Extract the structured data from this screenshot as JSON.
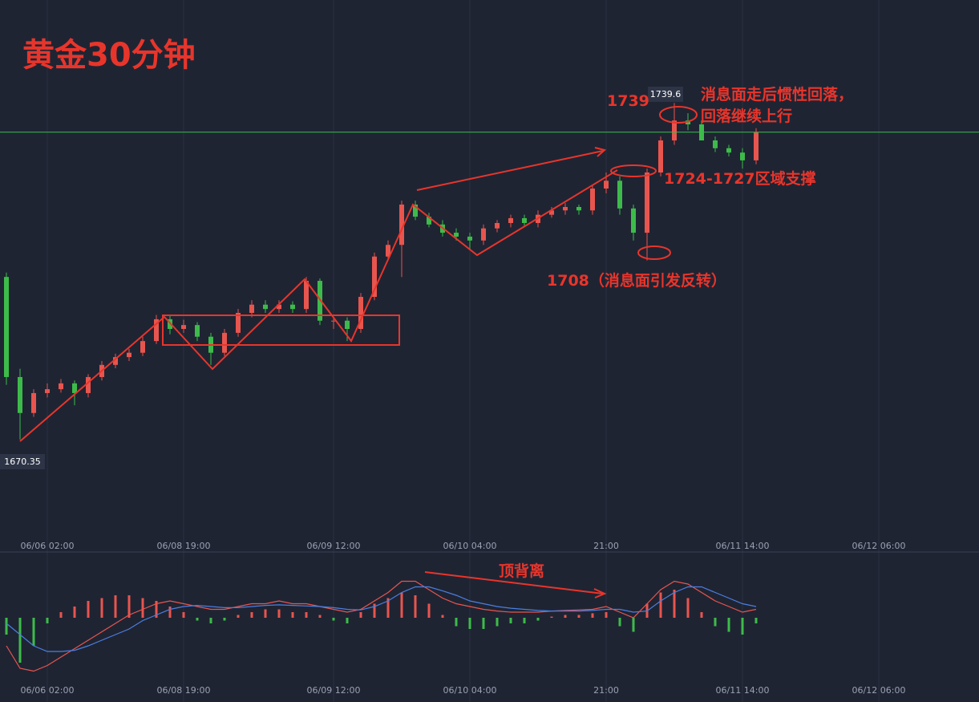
{
  "chart_data": {
    "type": "candlestick",
    "title": "黄金30分钟",
    "categories": [
      null,
      null,
      null,
      "06/06 02:00",
      null,
      null,
      null,
      null,
      null,
      null,
      null,
      null,
      null,
      "06/08 19:00",
      null,
      null,
      null,
      null,
      null,
      null,
      null,
      null,
      null,
      null,
      "06/09 12:00",
      null,
      null,
      null,
      null,
      null,
      null,
      null,
      null,
      null,
      "06/10 04:00",
      null,
      null,
      null,
      null,
      null,
      null,
      null,
      null,
      null,
      "21:00",
      null,
      null,
      null,
      null,
      null,
      null,
      null,
      null,
      null,
      "06/11 14:00",
      null,
      null,
      null,
      null,
      null,
      null,
      null,
      null,
      null,
      "06/12 06:00"
    ],
    "open": [
      1703.8,
      1683.2,
      1675.8,
      1679.9,
      1680.7,
      1681.9,
      1679.9,
      1683.2,
      1685.7,
      1687.3,
      1688.2,
      1690.6,
      1695.1,
      1693.1,
      1693.9,
      1691.5,
      1688.2,
      1692.3,
      1696.4,
      1698.1,
      1697.2,
      1698.1,
      1697.2,
      1703.0,
      1694.8,
      1694.8,
      1693.1,
      1699.7,
      1708.0,
      1710.4,
      1718.7,
      1716.2,
      1714.6,
      1712.9,
      1712.1,
      1711.3,
      1713.8,
      1714.9,
      1715.9,
      1714.9,
      1716.6,
      1717.5,
      1718.2,
      1717.5,
      1722.0,
      1723.6,
      1717.9,
      1712.9,
      1725.3,
      1731.9,
      1736.0,
      1735.2,
      1731.9,
      1730.3,
      1729.4,
      1727.8,
      null,
      null,
      null,
      null,
      null,
      null,
      null,
      null,
      null
    ],
    "high": [
      1704.7,
      1684.9,
      1680.7,
      1681.9,
      1682.8,
      1682.5,
      1683.8,
      1686.5,
      1688.0,
      1689.0,
      1691.5,
      1696.0,
      1696.0,
      1695.0,
      1694.5,
      1692.3,
      1693.1,
      1697.2,
      1699.0,
      1699.0,
      1699.0,
      1698.8,
      1703.8,
      1703.5,
      1695.5,
      1695.5,
      1700.5,
      1708.8,
      1711.3,
      1719.5,
      1719.5,
      1717.0,
      1715.5,
      1713.8,
      1712.9,
      1714.6,
      1715.5,
      1716.6,
      1716.6,
      1717.5,
      1718.2,
      1719.0,
      1718.7,
      1722.8,
      1725.3,
      1724.5,
      1718.7,
      1726.1,
      1732.7,
      1739.6,
      1737.5,
      1736.0,
      1732.7,
      1731.0,
      1730.3,
      1734.4,
      null,
      null,
      null,
      null,
      null,
      null,
      null,
      null,
      null
    ],
    "low": [
      1681.6,
      1670.35,
      1675.0,
      1679.0,
      1680.0,
      1677.4,
      1679.0,
      1682.5,
      1685.0,
      1686.5,
      1687.5,
      1690.0,
      1692.0,
      1692.3,
      1690.6,
      1685.7,
      1687.5,
      1691.5,
      1695.5,
      1696.4,
      1696.4,
      1696.4,
      1696.4,
      1693.9,
      1693.1,
      1690.6,
      1692.3,
      1699.0,
      1707.2,
      1703.8,
      1715.5,
      1714.0,
      1712.1,
      1711.3,
      1709.3,
      1710.4,
      1713.0,
      1714.0,
      1714.0,
      1714.0,
      1716.0,
      1716.6,
      1716.6,
      1716.6,
      1721.0,
      1716.6,
      1711.3,
      1707.2,
      1724.5,
      1731.0,
      1734.0,
      1733.0,
      1729.5,
      1728.6,
      1726.1,
      1727.0,
      null,
      null,
      null,
      null,
      null,
      null,
      null,
      null,
      null
    ],
    "close": [
      1683.2,
      1675.8,
      1679.9,
      1680.7,
      1681.9,
      1679.9,
      1683.2,
      1685.7,
      1687.3,
      1688.2,
      1690.6,
      1695.1,
      1693.1,
      1693.9,
      1691.5,
      1688.2,
      1692.3,
      1696.4,
      1698.1,
      1697.2,
      1698.1,
      1697.2,
      1703.0,
      1694.8,
      1694.8,
      1693.1,
      1699.7,
      1708.0,
      1710.4,
      1718.7,
      1716.2,
      1714.6,
      1712.9,
      1712.1,
      1711.3,
      1713.8,
      1714.9,
      1715.9,
      1714.9,
      1716.6,
      1717.5,
      1718.2,
      1717.5,
      1722.0,
      1723.6,
      1717.9,
      1712.9,
      1725.3,
      1731.9,
      1736.0,
      1735.2,
      1731.9,
      1730.3,
      1729.4,
      1727.8,
      1733.6,
      null,
      null,
      null,
      null,
      null,
      null,
      null,
      null,
      null
    ],
    "up_color": "#e8554e",
    "down_color": "#3dbb4a",
    "ylim": [
      1650.5,
      1760.8
    ],
    "price_labels": [
      1670.35,
      1739.6
    ],
    "annotations": [
      "1739",
      "消息面走后惯性回落，",
      "回落继续上行",
      "1724-1727区域支撑",
      "1708（消息面引发反转）",
      "顶背离"
    ],
    "macd": {
      "ylim": [
        -1,
        1
      ],
      "histogram": [
        -0.3,
        -0.8,
        -0.5,
        -0.1,
        0.1,
        0.2,
        0.3,
        0.35,
        0.4,
        0.4,
        0.35,
        0.3,
        0.2,
        0.1,
        -0.05,
        -0.1,
        -0.05,
        0.05,
        0.1,
        0.15,
        0.15,
        0.1,
        0.1,
        0.05,
        -0.05,
        -0.1,
        0.1,
        0.25,
        0.35,
        0.45,
        0.4,
        0.25,
        0.05,
        -0.15,
        -0.2,
        -0.2,
        -0.15,
        -0.1,
        -0.1,
        -0.05,
        0.02,
        0.05,
        0.05,
        0.08,
        0.1,
        -0.15,
        -0.25,
        0.25,
        0.45,
        0.5,
        0.35,
        0.1,
        -0.15,
        -0.25,
        -0.3,
        -0.1,
        null,
        null,
        null,
        null,
        null,
        null,
        null,
        null,
        null
      ],
      "dif": [
        -0.5,
        -0.9,
        -0.95,
        -0.85,
        -0.7,
        -0.55,
        -0.4,
        -0.25,
        -0.1,
        0.05,
        0.15,
        0.25,
        0.3,
        0.25,
        0.2,
        0.15,
        0.15,
        0.2,
        0.25,
        0.25,
        0.3,
        0.25,
        0.25,
        0.2,
        0.15,
        0.1,
        0.15,
        0.3,
        0.45,
        0.65,
        0.65,
        0.5,
        0.35,
        0.25,
        0.2,
        0.15,
        0.12,
        0.1,
        0.1,
        0.1,
        0.12,
        0.13,
        0.14,
        0.15,
        0.2,
        0.1,
        0.0,
        0.25,
        0.5,
        0.65,
        0.6,
        0.45,
        0.3,
        0.2,
        0.1,
        0.15,
        null,
        null,
        null,
        null,
        null,
        null,
        null,
        null,
        null
      ],
      "dea": [
        -0.1,
        -0.3,
        -0.5,
        -0.6,
        -0.6,
        -0.58,
        -0.5,
        -0.4,
        -0.3,
        -0.2,
        -0.05,
        0.05,
        0.15,
        0.2,
        0.22,
        0.2,
        0.18,
        0.18,
        0.2,
        0.22,
        0.23,
        0.22,
        0.21,
        0.2,
        0.18,
        0.15,
        0.14,
        0.2,
        0.3,
        0.45,
        0.55,
        0.55,
        0.48,
        0.4,
        0.3,
        0.25,
        0.2,
        0.17,
        0.15,
        0.13,
        0.12,
        0.12,
        0.12,
        0.13,
        0.15,
        0.15,
        0.1,
        0.12,
        0.3,
        0.45,
        0.55,
        0.55,
        0.45,
        0.35,
        0.25,
        0.2,
        null,
        null,
        null,
        null,
        null,
        null,
        null,
        null,
        null
      ],
      "dif_color": "#e8554e",
      "dea_color": "#4a7fe0"
    }
  }
}
